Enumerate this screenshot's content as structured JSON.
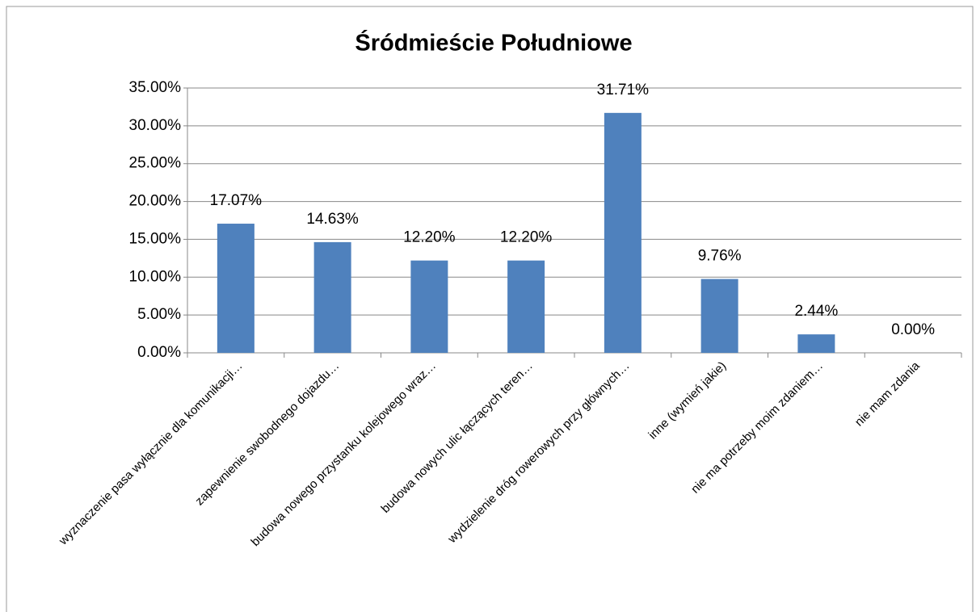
{
  "chart_data": {
    "type": "bar",
    "title": "Śródmieście Południowe",
    "categories": [
      "wyznaczenie pasa wyłącznie dla komunikacji…",
      "zapewnienie swobodnego dojazdu…",
      "budowa nowego przystanku kolejowego wraz…",
      "budowa nowych ulic łączących teren…",
      "wydzielenie dróg rowerowych przy głównych…",
      "inne (wymień jakie)",
      "nie ma potrzeby moim zdaniem…",
      "nie mam zdania"
    ],
    "values": [
      17.07,
      14.63,
      12.2,
      12.2,
      31.71,
      9.76,
      2.44,
      0
    ],
    "value_labels": [
      "17.07%",
      "14.63%",
      "12.20%",
      "12.20%",
      "31.71%",
      "9.76%",
      "2.44%",
      "0.00%"
    ],
    "color": "#4f81bd",
    "ylim": [
      0,
      35
    ],
    "yticks": [
      {
        "value": 0,
        "label": "0.00%"
      },
      {
        "value": 5,
        "label": "5.00%"
      },
      {
        "value": 10,
        "label": "10.00%"
      },
      {
        "value": 15,
        "label": "15.00%"
      },
      {
        "value": 20,
        "label": "20.00%"
      },
      {
        "value": 25,
        "label": "25.00%"
      },
      {
        "value": 30,
        "label": "30.00%"
      },
      {
        "value": 35,
        "label": "35.00%"
      }
    ],
    "grid": true
  }
}
